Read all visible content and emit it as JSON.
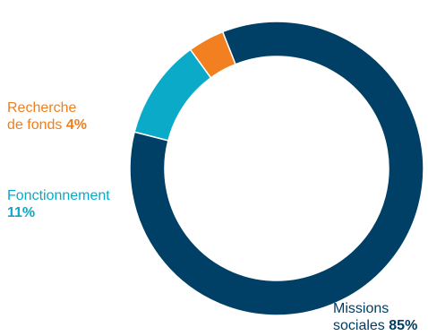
{
  "chart_data": {
    "type": "pie",
    "donut": true,
    "slices": [
      {
        "name_line1": "Missions",
        "name_line2": "sociales",
        "percent_label": "85%",
        "value": 85,
        "color": "#003f66"
      },
      {
        "name_line1": "Fonctionnement",
        "name_line2": "",
        "percent_label": "11%",
        "value": 11,
        "color": "#0aaac8"
      },
      {
        "name_line1": "Recherche",
        "name_line2": "de fonds",
        "percent_label": "4%",
        "value": 4,
        "color": "#f28021"
      }
    ],
    "legend": "none",
    "start_angle_deg": -21.6,
    "direction": "clockwise"
  }
}
